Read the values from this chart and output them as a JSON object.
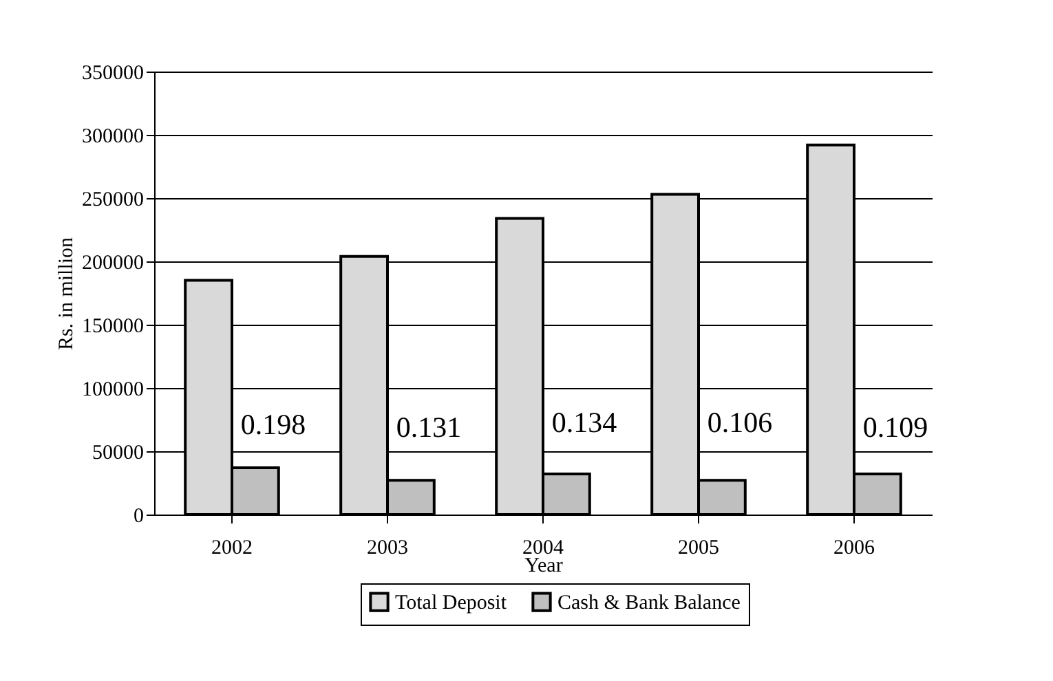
{
  "chart_data": {
    "type": "bar",
    "xlabel": "Year",
    "ylabel": "Rs. in million",
    "categories": [
      "2002",
      "2003",
      "2004",
      "2005",
      "2006"
    ],
    "series": [
      {
        "name": "Total Deposit",
        "color": "#d9d9d9",
        "values": [
          185000,
          204000,
          234000,
          253000,
          292000
        ]
      },
      {
        "name": "Cash & Bank Balance",
        "color": "#bfbfbf",
        "values": [
          37000,
          27000,
          32000,
          27000,
          32000
        ]
      }
    ],
    "ylim": [
      0,
      350000
    ],
    "yticks": [
      0,
      50000,
      100000,
      150000,
      200000,
      250000,
      300000,
      350000
    ],
    "grid": "y",
    "legend": "bottom",
    "annotations": [
      {
        "text": "0.198",
        "x": "2002",
        "y": 70000
      },
      {
        "text": "0.131",
        "x": "2003",
        "y": 68000
      },
      {
        "text": "0.134",
        "x": "2004",
        "y": 72000
      },
      {
        "text": "0.106",
        "x": "2005",
        "y": 72000
      },
      {
        "text": "0.109",
        "x": "2006",
        "y": 68000
      }
    ]
  }
}
